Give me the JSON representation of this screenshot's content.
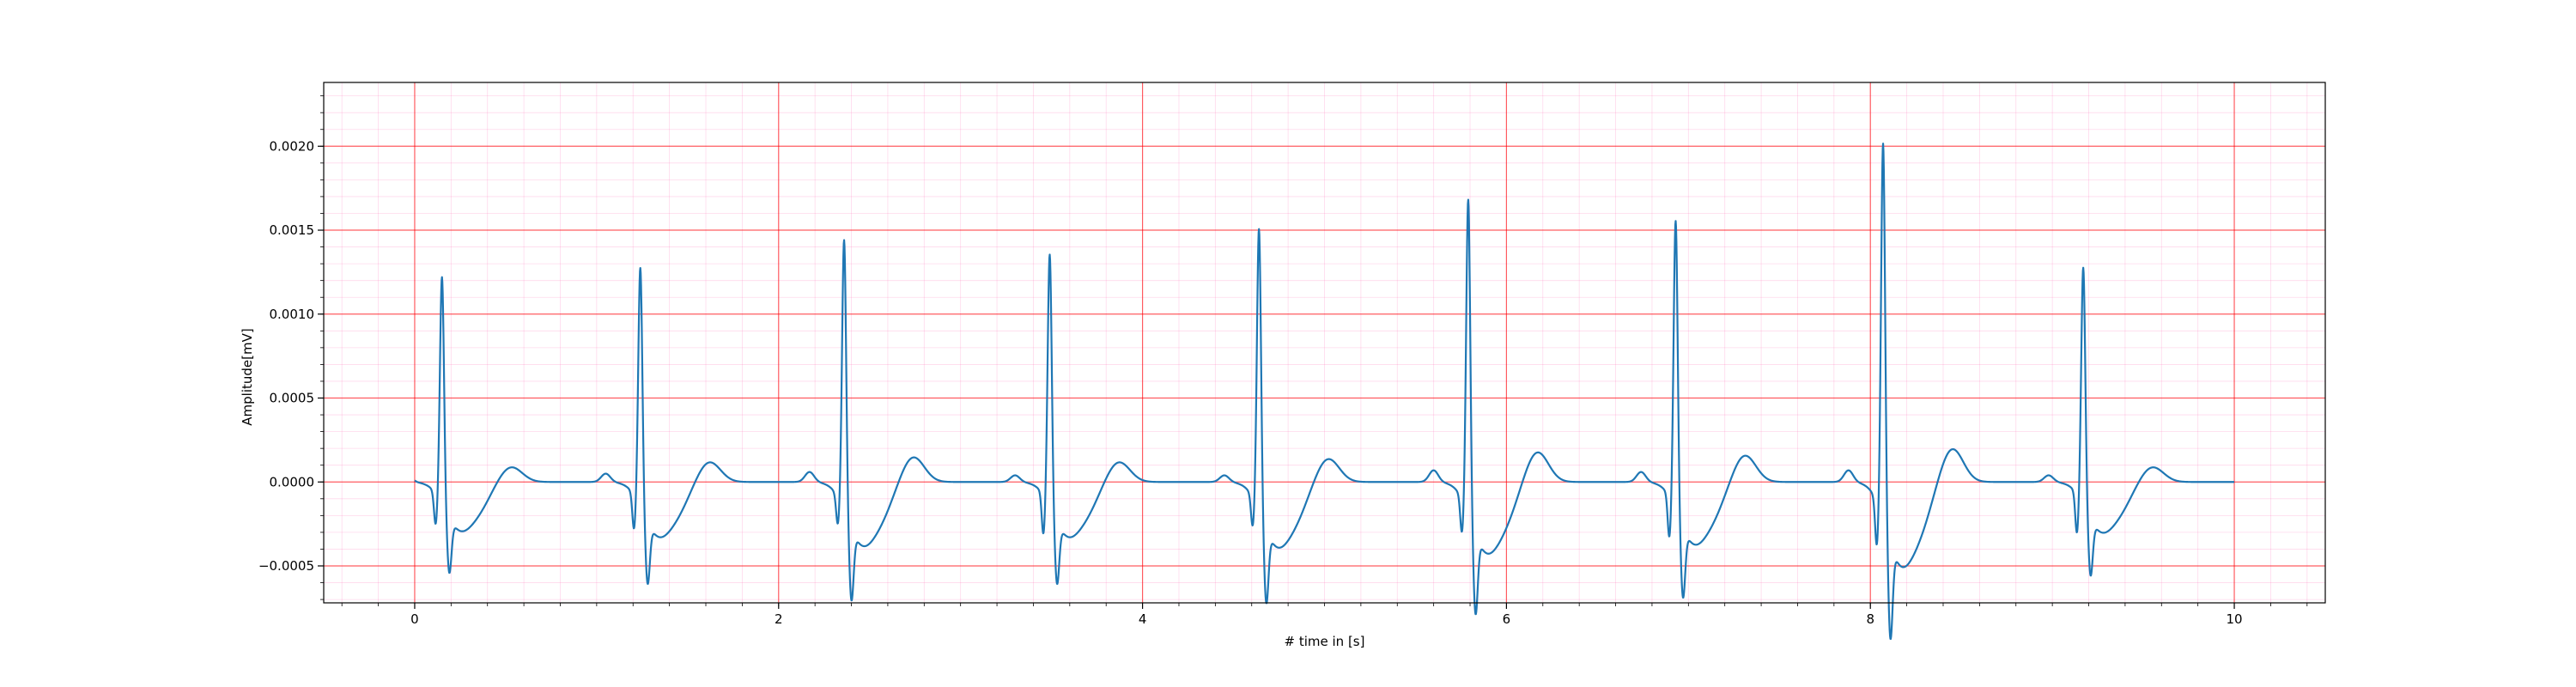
{
  "chart_data": {
    "type": "line",
    "title": "",
    "xlabel": "# time in [s]",
    "ylabel": "Amplitude[mV]",
    "xlim": [
      -0.5,
      10.5
    ],
    "ylim": [
      -0.00072,
      0.00238
    ],
    "x_ticks": [
      0,
      2,
      4,
      6,
      8,
      10
    ],
    "x_tick_labels": [
      "0",
      "2",
      "4",
      "6",
      "8",
      "10"
    ],
    "y_ticks": [
      -0.0005,
      0.0,
      0.0005,
      0.001,
      0.0015,
      0.002
    ],
    "y_tick_labels": [
      "−0.0005",
      "0.0000",
      "0.0005",
      "0.0010",
      "0.0015",
      "0.0020"
    ],
    "grid": {
      "major": true,
      "minor": true,
      "major_color": "#ff0000",
      "minor_color": "#ff69b4"
    },
    "legend": "none",
    "colors": {
      "line": "#1f77b4"
    },
    "series": [
      {
        "beats": [
          {
            "t": 0.15,
            "r": 0.00135,
            "s": -0.00033,
            "q": -0.00019,
            "p": 4e-05,
            "t_wave": 9e-05
          },
          {
            "t": 1.24,
            "r": 0.00142,
            "s": -0.00037,
            "q": -0.00021,
            "p": 5e-05,
            "t_wave": 0.00012
          },
          {
            "t": 2.36,
            "r": 0.00161,
            "s": -0.00043,
            "q": -0.00017,
            "p": 6e-05,
            "t_wave": 0.00015
          },
          {
            "t": 3.49,
            "r": 0.0015,
            "s": -0.00037,
            "q": -0.00024,
            "p": 4e-05,
            "t_wave": 0.00012
          },
          {
            "t": 4.64,
            "r": 0.00168,
            "s": -0.00044,
            "q": -0.00018,
            "p": 4e-05,
            "t_wave": 0.00014
          },
          {
            "t": 5.79,
            "r": 0.00187,
            "s": -0.00048,
            "q": -0.00021,
            "p": 7e-05,
            "t_wave": 0.00018
          },
          {
            "t": 6.93,
            "r": 0.00172,
            "s": -0.00042,
            "q": -0.00025,
            "p": 6e-05,
            "t_wave": 0.00016
          },
          {
            "t": 8.07,
            "r": 0.00224,
            "s": -0.00057,
            "q": -0.00027,
            "p": 7e-05,
            "t_wave": 0.0002
          },
          {
            "t": 9.17,
            "r": 0.00141,
            "s": -0.00034,
            "q": -0.00024,
            "p": 4e-05,
            "t_wave": 9e-05
          }
        ],
        "x_range": [
          0,
          10
        ]
      }
    ]
  }
}
